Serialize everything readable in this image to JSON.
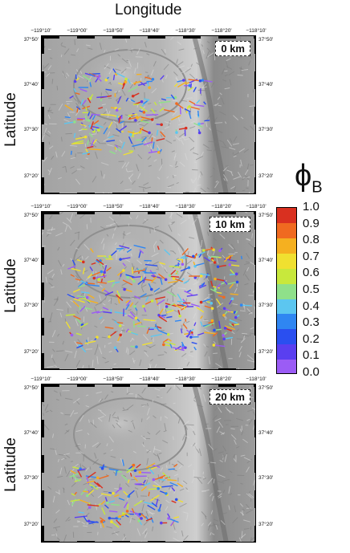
{
  "header": {
    "x_axis_title": "Longitude"
  },
  "y_axis_title": "Latitude",
  "lon_ticks": [
    "−119°10'",
    "−119°00'",
    "−118°50'",
    "−118°40'",
    "−118°30'",
    "−118°20'",
    "−118°10'"
  ],
  "lat_ticks": [
    "37°50'",
    "37°40'",
    "37°30'",
    "37°20'"
  ],
  "panels": [
    {
      "depth_label": "0 km"
    },
    {
      "depth_label": "10 km"
    },
    {
      "depth_label": "20 km"
    }
  ],
  "colorbar": {
    "symbol": "ϕ",
    "subscript": "B",
    "ticks": [
      "1.0",
      "0.9",
      "0.8",
      "0.7",
      "0.6",
      "0.5",
      "0.4",
      "0.3",
      "0.2",
      "0.1",
      "0.0"
    ],
    "colors": [
      "#9b5cf5",
      "#5a3ff0",
      "#2a4ff0",
      "#2f86f2",
      "#5cc6f0",
      "#8fe08a",
      "#c8e83c",
      "#f0e030",
      "#f5b020",
      "#f06a20",
      "#d93020"
    ]
  }
}
